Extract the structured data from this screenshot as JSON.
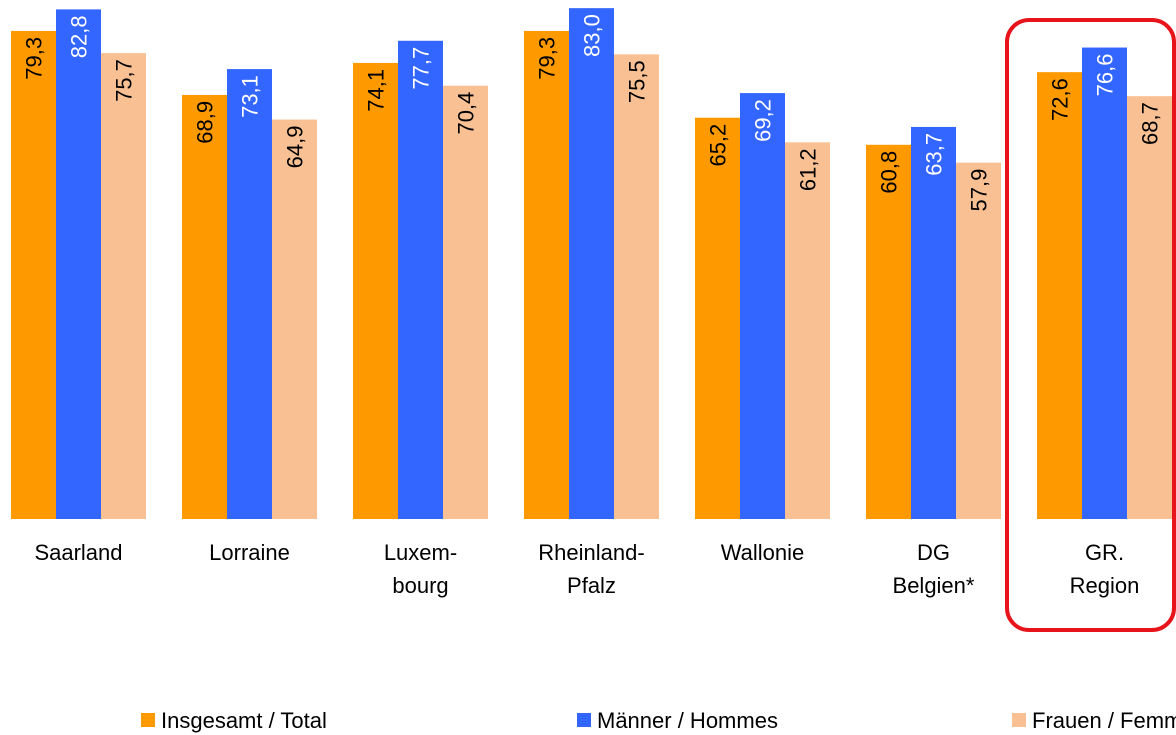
{
  "chart_data": {
    "type": "bar",
    "categories": [
      "Saarland",
      "Lorraine",
      "Luxem-\nbourg",
      "Rheinland-\nPfalz",
      "Wallonie",
      "DG\nBelgien*",
      "GR.\nRegion"
    ],
    "series": [
      {
        "name": "Insgesamt / Total",
        "color": "#ff9900",
        "values": [
          79.3,
          68.9,
          74.1,
          79.3,
          65.2,
          60.8,
          72.6
        ],
        "value_labels": [
          "79,3",
          "68,9",
          "74,1",
          "79,3",
          "65,2",
          "60,8",
          "72,6"
        ]
      },
      {
        "name": "Männer / Hommes",
        "color": "#3366ff",
        "values": [
          82.8,
          73.1,
          77.7,
          83.0,
          69.2,
          63.7,
          76.6
        ],
        "value_labels": [
          "82,8",
          "73,1",
          "77,7",
          "83,0",
          "69,2",
          "63,7",
          "76,6"
        ]
      },
      {
        "name": "Frauen / Femmes",
        "color": "#f9c193",
        "values": [
          75.7,
          64.9,
          70.4,
          75.5,
          61.2,
          57.9,
          68.7
        ],
        "value_labels": [
          "75,7",
          "64,9",
          "70,4",
          "75,5",
          "61,2",
          "57,9",
          "68,7"
        ]
      }
    ],
    "ylim": [
      0,
      84
    ],
    "legend": "bottom"
  }
}
